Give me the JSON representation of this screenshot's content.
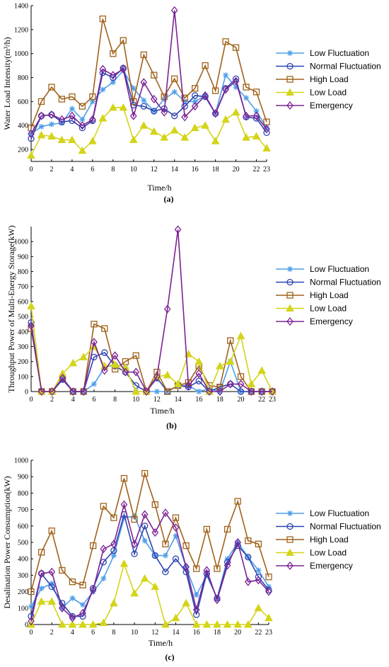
{
  "styles": {
    "Low Fluctuation": {
      "color": "#4f9ee8",
      "marker": "star"
    },
    "Normal Fluctuation": {
      "color": "#2f45b0",
      "marker": "circle"
    },
    "High Load": {
      "color": "#a0621a",
      "marker": "square"
    },
    "Low Load": {
      "color": "#d4d419",
      "marker": "triangle"
    },
    "Emergency": {
      "color": "#7b2394",
      "marker": "diamond"
    }
  },
  "chart_data": [
    {
      "type": "line",
      "panel_label": "(a)",
      "xlabel": "Time/h",
      "ylabel": "Water Load Intensity(m³/h)",
      "x": [
        0,
        1,
        2,
        3,
        4,
        5,
        6,
        7,
        8,
        9,
        10,
        11,
        12,
        13,
        14,
        15,
        16,
        17,
        18,
        19,
        20,
        21,
        22,
        23
      ],
      "xticks": [
        0,
        2,
        4,
        6,
        8,
        10,
        12,
        14,
        16,
        18,
        20,
        22,
        23
      ],
      "yticks": [
        200,
        400,
        600,
        800,
        1000,
        1200,
        1400
      ],
      "ylim": [
        100,
        1400
      ],
      "series": [
        {
          "name": "Low Fluctuation",
          "values": [
            330,
            390,
            410,
            420,
            540,
            450,
            600,
            700,
            760,
            860,
            710,
            610,
            520,
            620,
            680,
            600,
            600,
            650,
            500,
            820,
            720,
            630,
            520,
            380
          ]
        },
        {
          "name": "Normal Fluctuation",
          "values": [
            290,
            480,
            490,
            430,
            440,
            380,
            440,
            840,
            800,
            880,
            570,
            560,
            520,
            540,
            480,
            560,
            650,
            640,
            500,
            710,
            790,
            470,
            460,
            340
          ]
        },
        {
          "name": "High Load",
          "values": [
            380,
            600,
            720,
            620,
            640,
            560,
            640,
            1290,
            1000,
            1110,
            600,
            990,
            820,
            640,
            790,
            630,
            710,
            900,
            690,
            1100,
            1050,
            720,
            680,
            430
          ]
        },
        {
          "name": "Low Load",
          "values": [
            150,
            320,
            310,
            280,
            280,
            190,
            270,
            460,
            550,
            550,
            280,
            400,
            350,
            300,
            360,
            300,
            380,
            400,
            270,
            450,
            510,
            300,
            310,
            210
          ]
        },
        {
          "name": "Emergency",
          "values": [
            330,
            480,
            490,
            450,
            480,
            400,
            450,
            870,
            820,
            870,
            480,
            760,
            620,
            510,
            1360,
            470,
            560,
            650,
            500,
            700,
            770,
            480,
            480,
            370
          ]
        }
      ]
    },
    {
      "type": "line",
      "panel_label": "(b)",
      "xlabel": "Time/h",
      "ylabel": "Throughput Power of Multi-Energy Storage(kW)",
      "x": [
        0,
        1,
        2,
        3,
        4,
        5,
        6,
        7,
        8,
        9,
        10,
        11,
        12,
        13,
        14,
        15,
        16,
        17,
        18,
        19,
        20,
        21,
        22,
        23
      ],
      "xticks": [
        0,
        2,
        4,
        6,
        8,
        10,
        12,
        14,
        16,
        18,
        20,
        22,
        23
      ],
      "yticks": [
        0,
        100,
        200,
        300,
        400,
        500,
        600,
        700,
        800,
        900,
        1000
      ],
      "ylim": [
        0,
        1100
      ],
      "series": [
        {
          "name": "Low Fluctuation",
          "values": [
            440,
            0,
            0,
            80,
            0,
            0,
            50,
            160,
            180,
            160,
            0,
            0,
            0,
            0,
            40,
            40,
            0,
            20,
            0,
            200,
            0,
            0,
            0,
            0
          ]
        },
        {
          "name": "Normal Fluctuation",
          "values": [
            460,
            0,
            0,
            80,
            0,
            0,
            230,
            260,
            170,
            130,
            40,
            0,
            90,
            0,
            40,
            30,
            70,
            0,
            30,
            50,
            0,
            0,
            0,
            0
          ]
        },
        {
          "name": "High Load",
          "values": [
            420,
            0,
            0,
            90,
            0,
            0,
            450,
            420,
            150,
            200,
            240,
            0,
            130,
            0,
            40,
            60,
            170,
            40,
            30,
            340,
            100,
            0,
            0,
            0
          ]
        },
        {
          "name": "Low Load",
          "values": [
            570,
            0,
            0,
            120,
            190,
            230,
            300,
            170,
            180,
            160,
            0,
            0,
            100,
            110,
            50,
            250,
            200,
            0,
            170,
            200,
            370,
            50,
            140,
            0
          ]
        },
        {
          "name": "Emergency",
          "values": [
            440,
            0,
            0,
            90,
            0,
            0,
            330,
            140,
            240,
            130,
            130,
            0,
            100,
            550,
            1080,
            40,
            120,
            0,
            0,
            50,
            50,
            0,
            0,
            0
          ]
        }
      ]
    },
    {
      "type": "line",
      "panel_label": "(c)",
      "xlabel": "Time/h",
      "ylabel": "Desalination Power Consumption(kW)",
      "x": [
        0,
        1,
        2,
        3,
        4,
        5,
        6,
        7,
        8,
        9,
        10,
        11,
        12,
        13,
        14,
        15,
        16,
        17,
        18,
        19,
        20,
        21,
        22,
        23
      ],
      "xticks": [
        0,
        2,
        4,
        6,
        8,
        10,
        12,
        14,
        16,
        18,
        20,
        22,
        23
      ],
      "yticks": [
        0,
        100,
        200,
        300,
        400,
        500,
        600,
        700,
        800,
        900,
        1000
      ],
      "ylim": [
        0,
        1000
      ],
      "series": [
        {
          "name": "Low Fluctuation",
          "values": [
            110,
            220,
            250,
            100,
            160,
            120,
            200,
            280,
            420,
            650,
            660,
            510,
            420,
            420,
            540,
            350,
            180,
            300,
            160,
            400,
            500,
            410,
            330,
            230
          ]
        },
        {
          "name": "Normal Fluctuation",
          "values": [
            50,
            310,
            230,
            130,
            50,
            50,
            220,
            380,
            450,
            670,
            430,
            600,
            420,
            320,
            400,
            320,
            60,
            310,
            160,
            380,
            480,
            410,
            290,
            210
          ]
        },
        {
          "name": "High Load",
          "values": [
            200,
            440,
            570,
            330,
            260,
            240,
            480,
            720,
            650,
            890,
            640,
            920,
            730,
            490,
            650,
            480,
            340,
            580,
            340,
            580,
            750,
            510,
            490,
            290
          ]
        },
        {
          "name": "Low Load",
          "values": [
            0,
            140,
            140,
            0,
            0,
            0,
            0,
            10,
            130,
            370,
            190,
            280,
            230,
            0,
            40,
            130,
            0,
            0,
            0,
            0,
            0,
            0,
            100,
            40
          ]
        },
        {
          "name": "Emergency",
          "values": [
            20,
            310,
            320,
            100,
            40,
            70,
            210,
            460,
            490,
            730,
            490,
            670,
            560,
            680,
            590,
            350,
            90,
            330,
            150,
            360,
            500,
            260,
            270,
            200
          ]
        }
      ]
    }
  ]
}
